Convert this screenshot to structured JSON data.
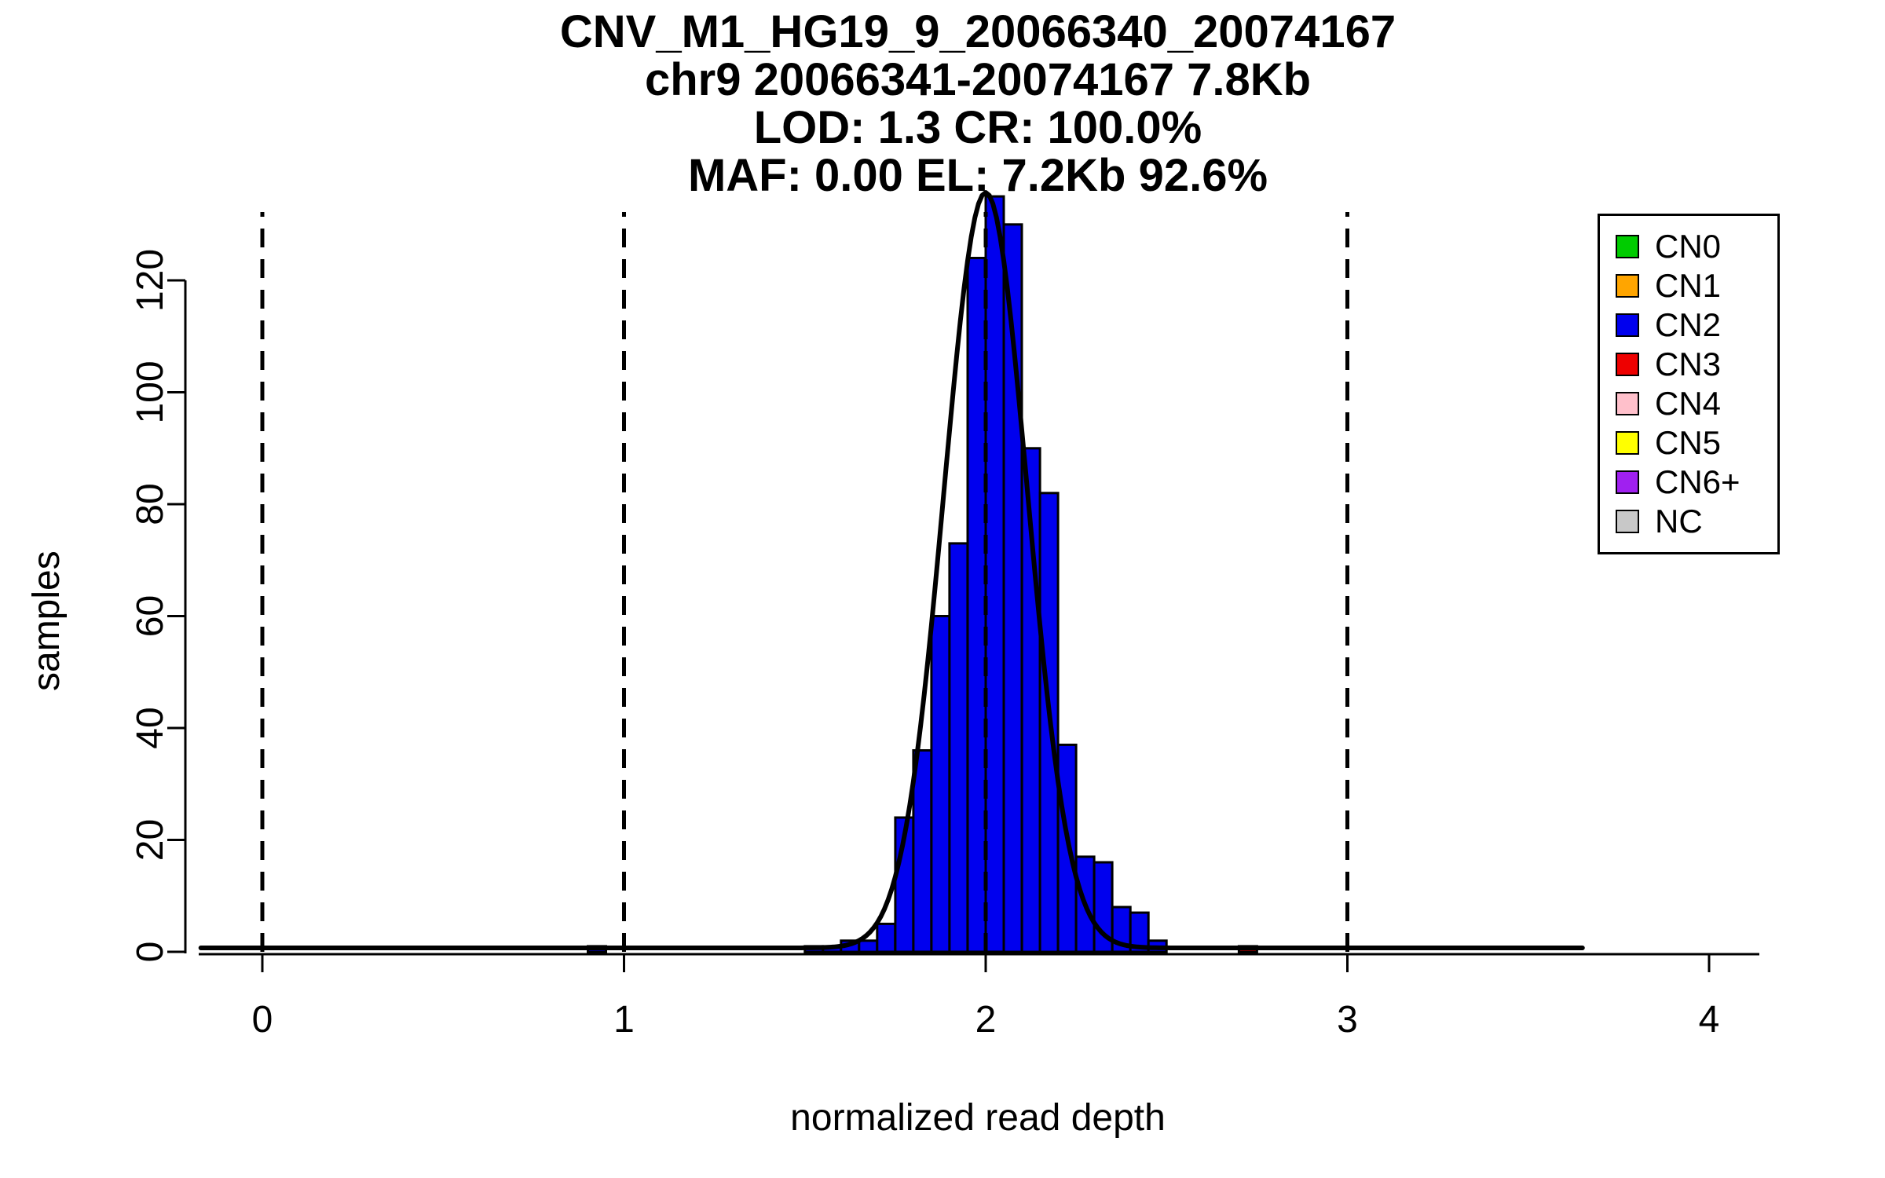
{
  "chart_data": {
    "type": "bar",
    "subtype": "histogram",
    "title_lines": [
      "CNV_M1_HG19_9_20066340_20074167",
      "chr9 20066341-20074167 7.8Kb",
      "LOD: 1.3 CR: 100.0%",
      "MAF: 0.00 EL: 7.2Kb 92.6%"
    ],
    "xlabel": "normalized read depth",
    "ylabel": "samples",
    "x_ticks": [
      0,
      1,
      2,
      3,
      4
    ],
    "y_ticks": [
      0,
      20,
      40,
      60,
      80,
      100,
      120
    ],
    "xlim": [
      -0.18,
      4.15
    ],
    "ylim": [
      0,
      135.5
    ],
    "grid": false,
    "dashed_vlines": [
      0,
      1,
      2,
      3
    ],
    "bin_width": 0.05,
    "bars": [
      {
        "x": 0.9,
        "count": 1,
        "cn": "CN2"
      },
      {
        "x": 1.5,
        "count": 1,
        "cn": "CN2"
      },
      {
        "x": 1.55,
        "count": 1,
        "cn": "CN2"
      },
      {
        "x": 1.6,
        "count": 2,
        "cn": "CN2"
      },
      {
        "x": 1.65,
        "count": 2,
        "cn": "CN2"
      },
      {
        "x": 1.7,
        "count": 5,
        "cn": "CN2"
      },
      {
        "x": 1.75,
        "count": 24,
        "cn": "CN2"
      },
      {
        "x": 1.8,
        "count": 36,
        "cn": "CN2"
      },
      {
        "x": 1.85,
        "count": 60,
        "cn": "CN2"
      },
      {
        "x": 1.9,
        "count": 73,
        "cn": "CN2"
      },
      {
        "x": 1.95,
        "count": 124,
        "cn": "CN2"
      },
      {
        "x": 2.0,
        "count": 135,
        "cn": "CN2"
      },
      {
        "x": 2.05,
        "count": 130,
        "cn": "CN2"
      },
      {
        "x": 2.1,
        "count": 90,
        "cn": "CN2"
      },
      {
        "x": 2.15,
        "count": 82,
        "cn": "CN2"
      },
      {
        "x": 2.2,
        "count": 37,
        "cn": "CN2"
      },
      {
        "x": 2.25,
        "count": 17,
        "cn": "CN2"
      },
      {
        "x": 2.3,
        "count": 16,
        "cn": "CN2"
      },
      {
        "x": 2.35,
        "count": 8,
        "cn": "CN2"
      },
      {
        "x": 2.4,
        "count": 7,
        "cn": "CN2"
      },
      {
        "x": 2.45,
        "count": 2,
        "cn": "CN2"
      },
      {
        "x": 2.7,
        "count": 1,
        "cn": "CN3"
      }
    ],
    "fit_curve": {
      "type": "gaussian",
      "mean": 2.0,
      "sd": 0.115,
      "peak": 135,
      "baseline": 0.7,
      "x_range": [
        -0.17,
        3.65
      ],
      "color": "#000000"
    },
    "legend": {
      "position": "top-right",
      "items": [
        {
          "label": "CN0",
          "color": "#00CC00"
        },
        {
          "label": "CN1",
          "color": "#FFA500"
        },
        {
          "label": "CN2",
          "color": "#0000EE"
        },
        {
          "label": "CN3",
          "color": "#EE0000"
        },
        {
          "label": "CN4",
          "color": "#FFC0CB"
        },
        {
          "label": "CN5",
          "color": "#FFFF00"
        },
        {
          "label": "CN6+",
          "color": "#A020F0"
        },
        {
          "label": "NC",
          "color": "#C8C8C8"
        }
      ]
    }
  }
}
